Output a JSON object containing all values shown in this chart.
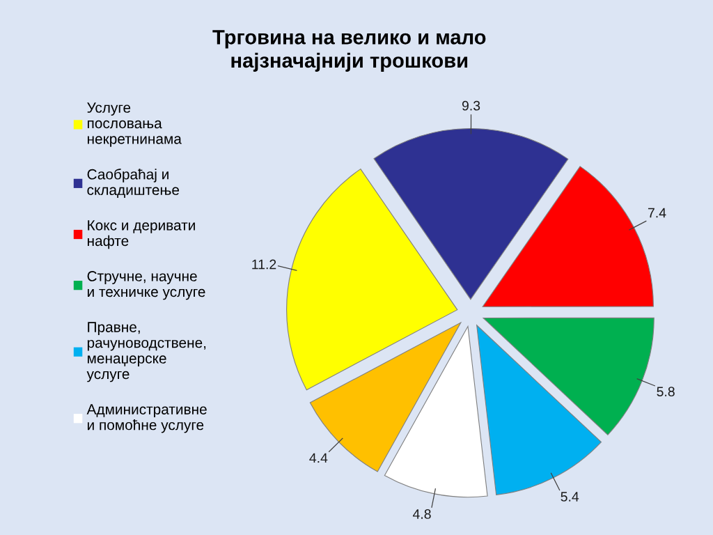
{
  "chart_data": {
    "type": "pie",
    "title": "Трговина на велико и мало\nнајзначајнији трошкови",
    "categories": [
      "Услуге\nпословања\nнекретнинама",
      "Саобраћај и\nскладиштење",
      "Кокс и деривати\nнафте",
      "Стручне, научне\nи техничке услуге",
      "Правне,\nрачуноводствене,\nменаџерске\nуслуге",
      "Административне\nи помоћне услуге",
      null
    ],
    "values": [
      11.2,
      9.3,
      7.4,
      5.8,
      5.4,
      4.8,
      4.4
    ],
    "colors": [
      "#ffff00",
      "#2e3192",
      "#ff0000",
      "#00b050",
      "#00b0f0",
      "#ffffff",
      "#ffc000"
    ],
    "data_labels": true,
    "legend": "left"
  }
}
